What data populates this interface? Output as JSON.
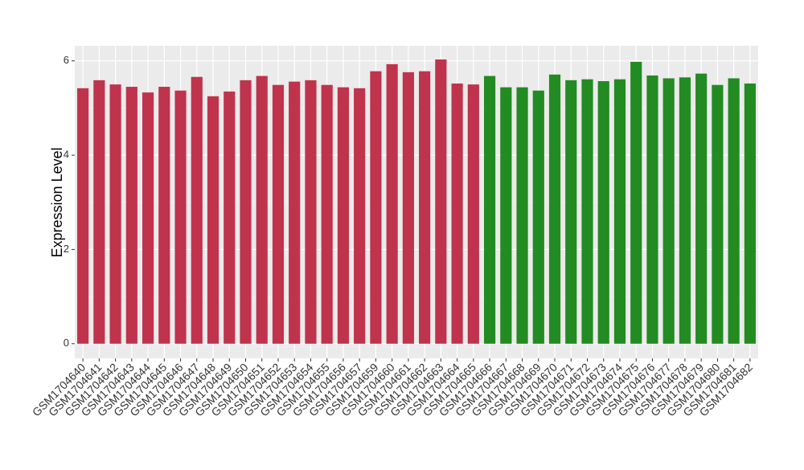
{
  "chart_data": {
    "type": "bar",
    "y_label": "Expression Level",
    "categories": [
      "GSM1704640",
      "GSM1704641",
      "GSM1704642",
      "GSM1704643",
      "GSM1704644",
      "GSM1704645",
      "GSM1704646",
      "GSM1704647",
      "GSM1704648",
      "GSM1704649",
      "GSM1704650",
      "GSM1704651",
      "GSM1704652",
      "GSM1704653",
      "GSM1704654",
      "GSM1704655",
      "GSM1704656",
      "GSM1704657",
      "GSM1704659",
      "GSM1704660",
      "GSM1704661",
      "GSM1704662",
      "GSM1704663",
      "GSM1704664",
      "GSM1704665",
      "GSM1704666",
      "GSM1704667",
      "GSM1704668",
      "GSM1704669",
      "GSM1704670",
      "GSM1704671",
      "GSM1704672",
      "GSM1704673",
      "GSM1704674",
      "GSM1704675",
      "GSM1704676",
      "GSM1704677",
      "GSM1704678",
      "GSM1704679",
      "GSM1704680",
      "GSM1704681",
      "GSM1704682"
    ],
    "values": [
      5.42,
      5.59,
      5.5,
      5.45,
      5.33,
      5.45,
      5.37,
      5.66,
      5.25,
      5.35,
      5.59,
      5.68,
      5.49,
      5.56,
      5.59,
      5.49,
      5.44,
      5.42,
      5.78,
      5.93,
      5.76,
      5.78,
      6.03,
      5.52,
      5.5,
      5.68,
      5.44,
      5.44,
      5.37,
      5.71,
      5.59,
      5.61,
      5.57,
      5.61,
      5.98,
      5.69,
      5.63,
      5.65,
      5.73,
      5.49,
      5.63,
      5.52
    ],
    "colors": [
      "#c0334d",
      "#c0334d",
      "#c0334d",
      "#c0334d",
      "#c0334d",
      "#c0334d",
      "#c0334d",
      "#c0334d",
      "#c0334d",
      "#c0334d",
      "#c0334d",
      "#c0334d",
      "#c0334d",
      "#c0334d",
      "#c0334d",
      "#c0334d",
      "#c0334d",
      "#c0334d",
      "#c0334d",
      "#c0334d",
      "#c0334d",
      "#c0334d",
      "#c0334d",
      "#c0334d",
      "#c0334d",
      "#228b22",
      "#228b22",
      "#228b22",
      "#228b22",
      "#228b22",
      "#228b22",
      "#228b22",
      "#228b22",
      "#228b22",
      "#228b22",
      "#228b22",
      "#228b22",
      "#228b22",
      "#228b22",
      "#228b22",
      "#228b22",
      "#228b22"
    ],
    "ylim": [
      -0.31,
      6.32
    ],
    "yticks": [
      0,
      2,
      4,
      6
    ],
    "minor_yticks": [
      1,
      3,
      5
    ],
    "grid": true
  }
}
